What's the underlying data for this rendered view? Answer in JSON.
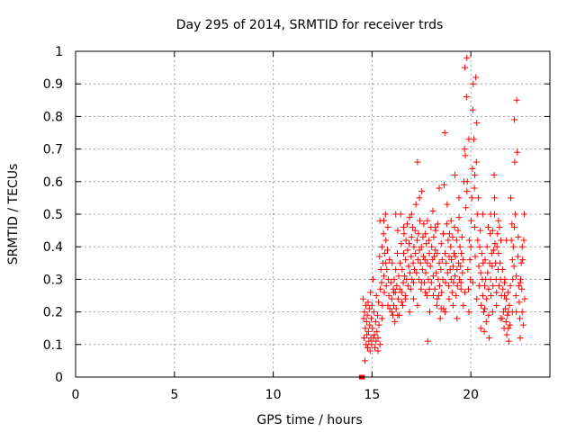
{
  "chart_data": {
    "type": "scatter",
    "title": "Day 295 of 2014, SRMTID for receiver trds",
    "xlabel": "GPS time / hours",
    "ylabel": "SRMTID / TECUs",
    "xlim": [
      0,
      24
    ],
    "ylim": [
      0,
      1
    ],
    "grid": true,
    "marker": "+",
    "color": "#ff0000",
    "xticks": [
      0,
      5,
      10,
      15,
      20
    ],
    "xtick_labels": [
      "0",
      "5",
      "10",
      "15",
      "20"
    ],
    "yticks": [
      0,
      0.1,
      0.2,
      0.3,
      0.4,
      0.5,
      0.6,
      0.7,
      0.8,
      0.9,
      1
    ],
    "ytick_labels": [
      "0",
      "0.1",
      "0.2",
      "0.3",
      "0.4",
      "0.5",
      "0.6",
      "0.7",
      "0.8",
      "0.9",
      "1"
    ],
    "squares": [
      [
        14.45,
        0.0
      ],
      [
        14.52,
        0.0
      ]
    ],
    "points": [
      [
        14.55,
        0.24
      ],
      [
        14.58,
        0.18
      ],
      [
        14.6,
        0.12
      ],
      [
        14.62,
        0.2
      ],
      [
        14.64,
        0.05
      ],
      [
        14.66,
        0.15
      ],
      [
        14.68,
        0.22
      ],
      [
        14.7,
        0.1
      ],
      [
        14.72,
        0.17
      ],
      [
        14.74,
        0.13
      ],
      [
        14.76,
        0.19
      ],
      [
        14.78,
        0.09
      ],
      [
        14.8,
        0.23
      ],
      [
        14.82,
        0.14
      ],
      [
        14.84,
        0.11
      ],
      [
        14.86,
        0.21
      ],
      [
        14.88,
        0.16
      ],
      [
        14.9,
        0.08
      ],
      [
        14.92,
        0.26
      ],
      [
        14.94,
        0.12
      ],
      [
        14.96,
        0.18
      ],
      [
        14.98,
        0.1
      ],
      [
        15.0,
        0.22
      ],
      [
        15.02,
        0.15
      ],
      [
        15.05,
        0.3
      ],
      [
        15.08,
        0.12
      ],
      [
        15.1,
        0.2
      ],
      [
        15.12,
        0.13
      ],
      [
        15.15,
        0.09
      ],
      [
        15.18,
        0.17
      ],
      [
        15.2,
        0.11
      ],
      [
        15.22,
        0.25
      ],
      [
        15.25,
        0.14
      ],
      [
        15.28,
        0.19
      ],
      [
        15.3,
        0.12
      ],
      [
        15.32,
        0.23
      ],
      [
        15.35,
        0.16
      ],
      [
        15.38,
        0.37
      ],
      [
        15.4,
        0.48
      ],
      [
        15.42,
        0.27
      ],
      [
        15.45,
        0.33
      ],
      [
        15.48,
        0.29
      ],
      [
        15.5,
        0.4
      ],
      [
        15.52,
        0.22
      ],
      [
        15.55,
        0.35
      ],
      [
        15.58,
        0.44
      ],
      [
        15.6,
        0.31
      ],
      [
        15.62,
        0.26
      ],
      [
        15.65,
        0.38
      ],
      [
        15.68,
        0.5
      ],
      [
        15.7,
        0.42
      ],
      [
        15.72,
        0.28
      ],
      [
        15.75,
        0.33
      ],
      [
        15.78,
        0.39
      ],
      [
        15.8,
        0.46
      ],
      [
        15.82,
        0.3
      ],
      [
        15.85,
        0.25
      ],
      [
        15.88,
        0.36
      ],
      [
        15.9,
        0.21
      ],
      [
        15.95,
        0.29
      ],
      [
        16.0,
        0.24
      ],
      [
        16.02,
        0.35
      ],
      [
        16.05,
        0.19
      ],
      [
        16.08,
        0.27
      ],
      [
        16.1,
        0.22
      ],
      [
        16.12,
        0.3
      ],
      [
        16.15,
        0.17
      ],
      [
        16.18,
        0.26
      ],
      [
        16.2,
        0.33
      ],
      [
        16.22,
        0.21
      ],
      [
        16.25,
        0.28
      ],
      [
        16.28,
        0.38
      ],
      [
        16.3,
        0.45
      ],
      [
        16.32,
        0.24
      ],
      [
        16.35,
        0.31
      ],
      [
        16.38,
        0.19
      ],
      [
        16.4,
        0.27
      ],
      [
        16.42,
        0.35
      ],
      [
        16.45,
        0.5
      ],
      [
        16.48,
        0.41
      ],
      [
        16.5,
        0.26
      ],
      [
        16.52,
        0.33
      ],
      [
        16.55,
        0.22
      ],
      [
        16.58,
        0.29
      ],
      [
        16.6,
        0.38
      ],
      [
        16.62,
        0.44
      ],
      [
        16.65,
        0.31
      ],
      [
        16.68,
        0.25
      ],
      [
        16.7,
        0.36
      ],
      [
        16.72,
        0.42
      ],
      [
        16.75,
        0.3
      ],
      [
        16.78,
        0.47
      ],
      [
        16.8,
        0.39
      ],
      [
        16.82,
        0.28
      ],
      [
        16.85,
        0.34
      ],
      [
        16.88,
        0.41
      ],
      [
        16.9,
        0.49
      ],
      [
        16.92,
        0.32
      ],
      [
        16.95,
        0.27
      ],
      [
        16.98,
        0.37
      ],
      [
        17.0,
        0.43
      ],
      [
        17.02,
        0.3
      ],
      [
        17.05,
        0.46
      ],
      [
        17.08,
        0.35
      ],
      [
        17.1,
        0.29
      ],
      [
        17.12,
        0.4
      ],
      [
        17.15,
        0.33
      ],
      [
        17.18,
        0.45
      ],
      [
        17.2,
        0.38
      ],
      [
        17.22,
        0.53
      ],
      [
        17.25,
        0.32
      ],
      [
        17.28,
        0.42
      ],
      [
        17.3,
        0.66
      ],
      [
        17.32,
        0.36
      ],
      [
        17.35,
        0.44
      ],
      [
        17.38,
        0.3
      ],
      [
        17.4,
        0.39
      ],
      [
        17.42,
        0.48
      ],
      [
        17.45,
        0.35
      ],
      [
        17.48,
        0.27
      ],
      [
        17.5,
        0.4
      ],
      [
        17.52,
        0.57
      ],
      [
        17.55,
        0.33
      ],
      [
        17.58,
        0.43
      ],
      [
        17.6,
        0.37
      ],
      [
        17.62,
        0.47
      ],
      [
        17.65,
        0.29
      ],
      [
        17.68,
        0.36
      ],
      [
        17.7,
        0.44
      ],
      [
        17.72,
        0.32
      ],
      [
        17.75,
        0.41
      ],
      [
        17.78,
        0.25
      ],
      [
        17.8,
        0.35
      ],
      [
        17.82,
        0.11
      ],
      [
        17.85,
        0.3
      ],
      [
        17.88,
        0.42
      ],
      [
        17.9,
        0.38
      ],
      [
        17.92,
        0.2
      ],
      [
        17.95,
        0.34
      ],
      [
        17.98,
        0.46
      ],
      [
        18.0,
        0.29
      ],
      [
        18.02,
        0.4
      ],
      [
        18.05,
        0.36
      ],
      [
        18.08,
        0.51
      ],
      [
        18.1,
        0.31
      ],
      [
        18.12,
        0.43
      ],
      [
        18.15,
        0.37
      ],
      [
        18.18,
        0.27
      ],
      [
        18.2,
        0.39
      ],
      [
        18.22,
        0.45
      ],
      [
        18.25,
        0.32
      ],
      [
        18.28,
        0.22
      ],
      [
        18.3,
        0.38
      ],
      [
        18.32,
        0.47
      ],
      [
        18.35,
        0.3
      ],
      [
        18.38,
        0.25
      ],
      [
        18.4,
        0.35
      ],
      [
        18.42,
        0.28
      ],
      [
        18.45,
        0.18
      ],
      [
        18.48,
        0.33
      ],
      [
        18.5,
        0.41
      ],
      [
        18.52,
        0.26
      ],
      [
        18.55,
        0.36
      ],
      [
        18.58,
        0.3
      ],
      [
        18.6,
        0.44
      ],
      [
        18.62,
        0.21
      ],
      [
        18.65,
        0.59
      ],
      [
        18.68,
        0.75
      ],
      [
        18.7,
        0.38
      ],
      [
        18.72,
        0.29
      ],
      [
        18.75,
        0.35
      ],
      [
        18.78,
        0.47
      ],
      [
        18.8,
        0.53
      ],
      [
        18.82,
        0.32
      ],
      [
        18.85,
        0.42
      ],
      [
        18.88,
        0.28
      ],
      [
        18.9,
        0.37
      ],
      [
        18.92,
        0.44
      ],
      [
        18.95,
        0.33
      ],
      [
        18.98,
        0.4
      ],
      [
        19.0,
        0.3
      ],
      [
        19.02,
        0.36
      ],
      [
        19.05,
        0.26
      ],
      [
        19.08,
        0.43
      ],
      [
        19.1,
        0.34
      ],
      [
        19.12,
        0.29
      ],
      [
        19.15,
        0.38
      ],
      [
        19.18,
        0.46
      ],
      [
        19.2,
        0.31
      ],
      [
        19.22,
        0.37
      ],
      [
        19.25,
        0.25
      ],
      [
        19.28,
        0.42
      ],
      [
        19.3,
        0.33
      ],
      [
        19.32,
        0.28
      ],
      [
        19.35,
        0.45
      ],
      [
        19.38,
        0.35
      ],
      [
        19.4,
        0.49
      ],
      [
        19.42,
        0.3
      ],
      [
        19.45,
        0.4
      ],
      [
        19.48,
        0.34
      ],
      [
        19.5,
        0.27
      ],
      [
        19.52,
        0.38
      ],
      [
        19.55,
        0.43
      ],
      [
        19.58,
        0.32
      ],
      [
        19.6,
        0.36
      ],
      [
        19.62,
        0.22
      ],
      [
        19.65,
        0.6
      ],
      [
        19.68,
        0.7
      ],
      [
        19.7,
        0.95
      ],
      [
        19.72,
        0.68
      ],
      [
        19.75,
        0.52
      ],
      [
        19.78,
        0.86
      ],
      [
        19.8,
        0.98
      ],
      [
        19.82,
        0.6
      ],
      [
        19.85,
        0.33
      ],
      [
        19.88,
        0.27
      ],
      [
        19.9,
        0.73
      ],
      [
        19.92,
        0.42
      ],
      [
        19.95,
        0.36
      ],
      [
        19.98,
        0.3
      ],
      [
        20.0,
        0.4
      ],
      [
        20.02,
        0.48
      ],
      [
        20.05,
        0.55
      ],
      [
        20.08,
        0.64
      ],
      [
        20.1,
        0.82
      ],
      [
        20.12,
        0.9
      ],
      [
        20.15,
        0.73
      ],
      [
        20.18,
        0.58
      ],
      [
        20.2,
        0.46
      ],
      [
        20.22,
        0.37
      ],
      [
        20.25,
        0.92
      ],
      [
        20.28,
        0.66
      ],
      [
        20.3,
        0.78
      ],
      [
        20.32,
        0.5
      ],
      [
        20.35,
        0.42
      ],
      [
        20.38,
        0.55
      ],
      [
        20.4,
        0.34
      ],
      [
        20.42,
        0.28
      ],
      [
        20.45,
        0.4
      ],
      [
        20.48,
        0.45
      ],
      [
        20.5,
        0.32
      ],
      [
        20.52,
        0.22
      ],
      [
        20.55,
        0.38
      ],
      [
        20.58,
        0.3
      ],
      [
        20.6,
        0.25
      ],
      [
        20.62,
        0.35
      ],
      [
        20.65,
        0.2
      ],
      [
        20.68,
        0.14
      ],
      [
        20.7,
        0.28
      ],
      [
        20.72,
        0.36
      ],
      [
        20.75,
        0.3
      ],
      [
        20.78,
        0.17
      ],
      [
        20.8,
        0.24
      ],
      [
        20.82,
        0.4
      ],
      [
        20.85,
        0.32
      ],
      [
        20.88,
        0.46
      ],
      [
        20.9,
        0.27
      ],
      [
        20.92,
        0.12
      ],
      [
        20.95,
        0.35
      ],
      [
        20.98,
        0.44
      ],
      [
        21.0,
        0.3
      ],
      [
        21.02,
        0.25
      ],
      [
        21.05,
        0.38
      ],
      [
        21.08,
        0.34
      ],
      [
        21.1,
        0.45
      ],
      [
        21.12,
        0.28
      ],
      [
        21.15,
        0.39
      ],
      [
        21.18,
        0.62
      ],
      [
        21.2,
        0.5
      ],
      [
        21.22,
        0.41
      ],
      [
        21.25,
        0.35
      ],
      [
        21.28,
        0.3
      ],
      [
        21.3,
        0.26
      ],
      [
        21.32,
        0.4
      ],
      [
        21.35,
        0.44
      ],
      [
        21.38,
        0.33
      ],
      [
        21.4,
        0.38
      ],
      [
        21.42,
        0.28
      ],
      [
        21.45,
        0.46
      ],
      [
        21.48,
        0.35
      ],
      [
        21.5,
        0.3
      ],
      [
        21.52,
        0.42
      ],
      [
        21.55,
        0.25
      ],
      [
        21.58,
        0.18
      ],
      [
        21.6,
        0.33
      ],
      [
        21.62,
        0.27
      ],
      [
        21.65,
        0.2
      ],
      [
        21.68,
        0.15
      ],
      [
        21.7,
        0.25
      ],
      [
        21.72,
        0.3
      ],
      [
        21.75,
        0.21
      ],
      [
        21.78,
        0.17
      ],
      [
        21.8,
        0.24
      ],
      [
        21.82,
        0.13
      ],
      [
        21.85,
        0.19
      ],
      [
        21.88,
        0.26
      ],
      [
        21.9,
        0.15
      ],
      [
        21.92,
        0.11
      ],
      [
        21.95,
        0.22
      ],
      [
        21.98,
        0.16
      ],
      [
        22.0,
        0.28
      ],
      [
        22.02,
        0.55
      ],
      [
        22.05,
        0.42
      ],
      [
        22.08,
        0.47
      ],
      [
        22.1,
        0.36
      ],
      [
        22.12,
        0.3
      ],
      [
        22.15,
        0.4
      ],
      [
        22.18,
        0.34
      ],
      [
        22.2,
        0.79
      ],
      [
        22.22,
        0.66
      ],
      [
        22.25,
        0.5
      ],
      [
        22.28,
        0.25
      ],
      [
        22.3,
        0.31
      ],
      [
        22.32,
        0.85
      ],
      [
        22.35,
        0.69
      ],
      [
        22.38,
        0.37
      ],
      [
        22.4,
        0.43
      ],
      [
        22.42,
        0.28
      ],
      [
        22.45,
        0.23
      ],
      [
        22.48,
        0.18
      ],
      [
        22.5,
        0.12
      ],
      [
        22.52,
        0.3
      ],
      [
        22.55,
        0.35
      ],
      [
        22.58,
        0.27
      ],
      [
        22.6,
        0.2
      ],
      [
        22.62,
        0.36
      ],
      [
        22.65,
        0.16
      ],
      [
        22.68,
        0.42
      ],
      [
        22.7,
        0.5
      ],
      [
        22.72,
        0.24
      ],
      [
        15.3,
        0.08
      ],
      [
        15.4,
        0.1
      ],
      [
        15.5,
        0.18
      ],
      [
        15.6,
        0.48
      ],
      [
        15.7,
        0.35
      ],
      [
        15.8,
        0.22
      ],
      [
        16.0,
        0.2
      ],
      [
        16.1,
        0.26
      ],
      [
        16.3,
        0.19
      ],
      [
        16.5,
        0.23
      ],
      [
        16.7,
        0.24
      ],
      [
        16.9,
        0.2
      ],
      [
        17.1,
        0.24
      ],
      [
        17.3,
        0.22
      ],
      [
        17.5,
        0.29
      ],
      [
        17.7,
        0.26
      ],
      [
        17.9,
        0.27
      ],
      [
        18.1,
        0.25
      ],
      [
        18.3,
        0.24
      ],
      [
        18.5,
        0.21
      ],
      [
        18.7,
        0.2
      ],
      [
        18.9,
        0.24
      ],
      [
        19.1,
        0.22
      ],
      [
        19.3,
        0.18
      ],
      [
        19.5,
        0.29
      ],
      [
        19.7,
        0.26
      ],
      [
        19.9,
        0.2
      ],
      [
        20.1,
        0.29
      ],
      [
        20.3,
        0.24
      ],
      [
        20.5,
        0.15
      ],
      [
        20.7,
        0.21
      ],
      [
        20.9,
        0.19
      ],
      [
        21.1,
        0.2
      ],
      [
        21.3,
        0.22
      ],
      [
        21.5,
        0.18
      ],
      [
        21.7,
        0.29
      ],
      [
        21.9,
        0.2
      ],
      [
        22.1,
        0.2
      ],
      [
        22.3,
        0.2
      ],
      [
        22.5,
        0.29
      ],
      [
        16.2,
        0.5
      ],
      [
        16.6,
        0.46
      ],
      [
        17.0,
        0.5
      ],
      [
        17.4,
        0.55
      ],
      [
        17.8,
        0.48
      ],
      [
        18.2,
        0.46
      ],
      [
        18.6,
        0.44
      ],
      [
        19.0,
        0.48
      ],
      [
        19.4,
        0.55
      ],
      [
        19.8,
        0.57
      ],
      [
        20.2,
        0.62
      ],
      [
        20.6,
        0.5
      ],
      [
        21.0,
        0.5
      ],
      [
        21.4,
        0.48
      ],
      [
        21.8,
        0.42
      ],
      [
        22.2,
        0.46
      ],
      [
        22.6,
        0.4
      ],
      [
        18.4,
        0.58
      ],
      [
        19.2,
        0.62
      ],
      [
        21.2,
        0.55
      ]
    ]
  }
}
